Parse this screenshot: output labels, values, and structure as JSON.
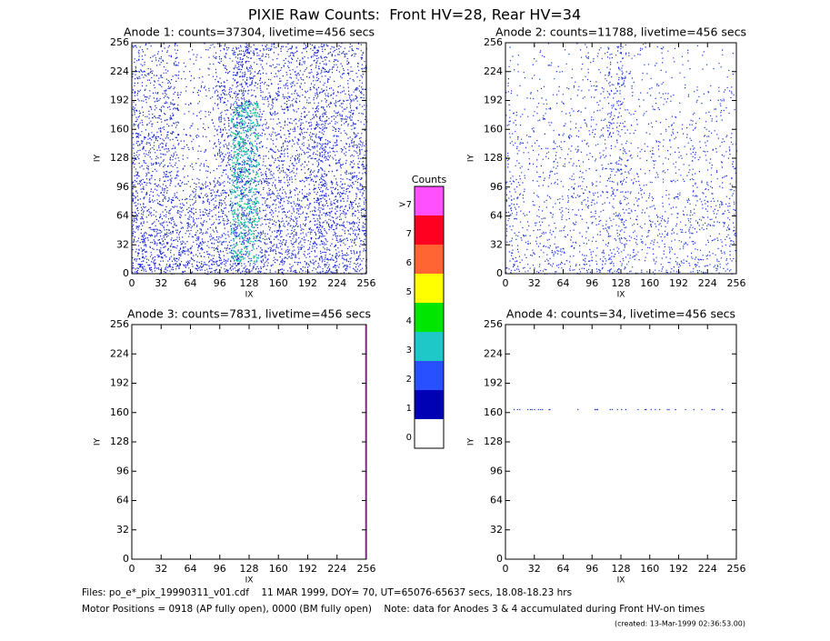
{
  "header": {
    "title": "PIXIE Raw Counts:  Front HV=28, Rear HV=34"
  },
  "chart_data": [
    {
      "type": "heatmap",
      "title": "Anode 1: counts=37304, livetime=456 secs",
      "xlabel": "IX",
      "ylabel": "IY",
      "xlim": [
        0,
        256
      ],
      "ylim": [
        0,
        256
      ],
      "xticks": [
        0,
        32,
        64,
        96,
        128,
        160,
        192,
        224,
        256
      ],
      "yticks": [
        0,
        32,
        64,
        96,
        128,
        160,
        192,
        224,
        256
      ]
    },
    {
      "type": "heatmap",
      "title": "Anode 2: counts=11788, livetime=456 secs",
      "xlabel": "IX",
      "ylabel": "IY",
      "xlim": [
        0,
        256
      ],
      "ylim": [
        0,
        256
      ],
      "xticks": [
        0,
        32,
        64,
        96,
        128,
        160,
        192,
        224,
        256
      ],
      "yticks": [
        0,
        32,
        64,
        96,
        128,
        160,
        192,
        224,
        256
      ]
    },
    {
      "type": "heatmap",
      "title": "Anode 3: counts=7831, livetime=456 secs",
      "xlabel": "IX",
      "ylabel": "IY",
      "xlim": [
        0,
        256
      ],
      "ylim": [
        0,
        256
      ],
      "xticks": [
        0,
        32,
        64,
        96,
        128,
        160,
        192,
        224,
        256
      ],
      "yticks": [
        0,
        32,
        64,
        96,
        128,
        160,
        192,
        224,
        256
      ]
    },
    {
      "type": "heatmap",
      "title": "Anode 4: counts=34, livetime=456 secs",
      "xlabel": "IX",
      "ylabel": "IY",
      "xlim": [
        0,
        256
      ],
      "ylim": [
        0,
        256
      ],
      "xticks": [
        0,
        32,
        64,
        96,
        128,
        160,
        192,
        224,
        256
      ],
      "yticks": [
        0,
        32,
        64,
        96,
        128,
        160,
        192,
        224,
        256
      ]
    },
    {
      "type": "colorbar",
      "title": "Counts",
      "ticks": [
        0,
        1,
        2,
        3,
        4,
        5,
        6,
        7,
        {
          "value": 8,
          "label": ">7"
        }
      ],
      "colors": [
        "#ffffff",
        "#0000b4",
        "#2850ff",
        "#1ec8c8",
        "#00e600",
        "#ffff00",
        "#ff6432",
        "#ff0020",
        "#ff50ff"
      ]
    }
  ],
  "footer": {
    "files": "Files: po_e*_pix_19990311_v01.cdf    11 MAR 1999, DOY= 70, UT=65076-65637 secs, 18.08-18.23 hrs",
    "motor": "Motor Positions = 0918 (AP fully open), 0000 (BM fully open)    Note: data for Anodes 3 & 4 accumulated during Front HV-on times",
    "created": "(created: 13-Mar-1999 02:36:53.00)"
  }
}
